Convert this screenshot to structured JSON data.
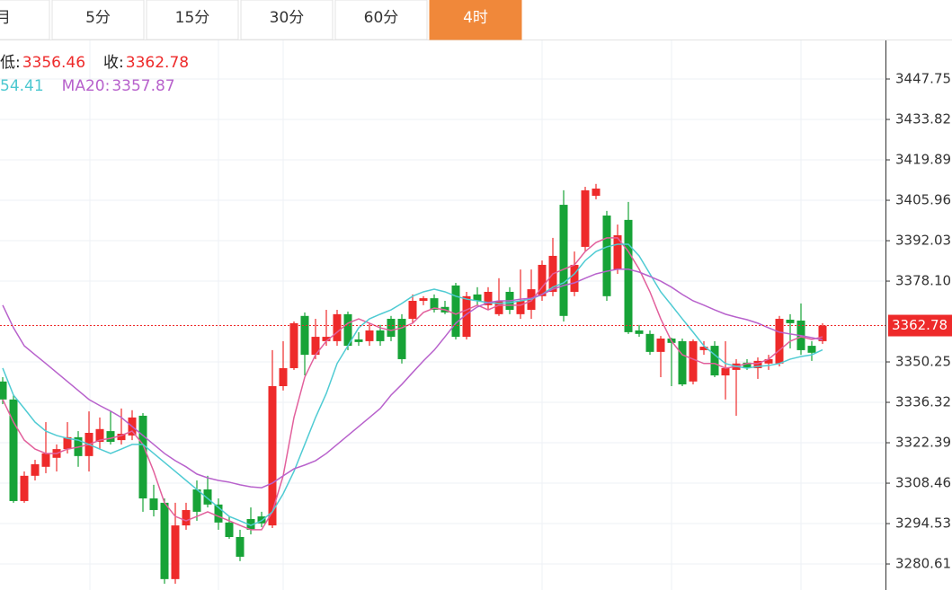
{
  "tabs": {
    "items": [
      "月",
      "5分",
      "15分",
      "30分",
      "60分",
      "4时"
    ],
    "active": 5
  },
  "chart_data": {
    "type": "candlestick",
    "legend_line1": [
      {
        "label": "低:",
        "value": 3356.46
      },
      {
        "label": "收:",
        "value": 3362.78
      }
    ],
    "legend_line2": [
      {
        "text": "54.41",
        "color": "#4cc8d0"
      },
      {
        "label": "MA20:",
        "value": 3357.87,
        "color": "#b862cc"
      }
    ],
    "up_color": "#ee2a2a",
    "down_color": "#17a337",
    "ylim": [
      3271.64,
      3461.06
    ],
    "yticks": [
      3447.75,
      3433.82,
      3419.89,
      3405.96,
      3392.03,
      {
        "value": 3378.1,
        "label": "3378.10"
      },
      3350.25,
      3336.32,
      3322.39,
      3308.46,
      3294.53,
      3280.61
    ],
    "grid": true,
    "last_price": 3362.78,
    "ohlc": [
      [
        3343.5,
        3345.0,
        3335.7,
        3337.3
      ],
      [
        3337.3,
        3338.8,
        3301.7,
        3302.3
      ],
      [
        3302.3,
        3312.5,
        3301.7,
        3311.0
      ],
      [
        3311.0,
        3316.5,
        3309.4,
        3315.0
      ],
      [
        3314.1,
        3329.5,
        3311.9,
        3318.7
      ],
      [
        3317.2,
        3321.8,
        3312.5,
        3320.2
      ],
      [
        3320.2,
        3329.5,
        3318.7,
        3324.3
      ],
      [
        3324.3,
        3326.4,
        3314.1,
        3317.8
      ],
      [
        3317.8,
        3333.2,
        3312.5,
        3325.8
      ],
      [
        3322.7,
        3331.1,
        3320.2,
        3327.1
      ],
      [
        3326.4,
        3333.2,
        3321.8,
        3322.7
      ],
      [
        3323.3,
        3334.2,
        3321.8,
        3325.5
      ],
      [
        3324.9,
        3333.6,
        3323.3,
        3331.1
      ],
      [
        3331.7,
        3332.6,
        3298.6,
        3303.2
      ],
      [
        3303.2,
        3307.9,
        3297.0,
        3299.2
      ],
      [
        3301.7,
        3303.2,
        3273.8,
        3275.4
      ],
      [
        3275.4,
        3301.7,
        3273.8,
        3293.9
      ],
      [
        3293.9,
        3301.7,
        3292.4,
        3299.2
      ],
      [
        3306.3,
        3309.4,
        3295.5,
        3298.6
      ],
      [
        3306.3,
        3311.0,
        3300.1,
        3301.1
      ],
      [
        3301.1,
        3303.2,
        3292.4,
        3294.9
      ],
      [
        3294.9,
        3297.0,
        3289.3,
        3289.9
      ],
      [
        3289.9,
        3292.4,
        3281.6,
        3283.1
      ],
      [
        3296.1,
        3300.1,
        3290.8,
        3292.4
      ],
      [
        3297.0,
        3298.6,
        3293.3,
        3294.6
      ],
      [
        3293.9,
        3354.3,
        3293.0,
        3341.9
      ],
      [
        3341.9,
        3357.4,
        3340.4,
        3348.1
      ],
      [
        3348.1,
        3364.2,
        3347.5,
        3363.6
      ],
      [
        3366.1,
        3367.3,
        3345.6,
        3352.7
      ],
      [
        3352.7,
        3365.1,
        3351.2,
        3358.9
      ],
      [
        3357.4,
        3368.2,
        3355.8,
        3358.9
      ],
      [
        3357.4,
        3368.2,
        3355.8,
        3366.7
      ],
      [
        3366.7,
        3367.6,
        3354.3,
        3355.8
      ],
      [
        3358.0,
        3360.5,
        3355.8,
        3357.1
      ],
      [
        3357.4,
        3363.6,
        3355.8,
        3361.1
      ],
      [
        3361.1,
        3363.0,
        3355.8,
        3357.4
      ],
      [
        3365.1,
        3366.1,
        3357.4,
        3358.9
      ],
      [
        3365.1,
        3366.7,
        3349.7,
        3351.2
      ],
      [
        3365.1,
        3373.5,
        3363.6,
        3371.3
      ],
      [
        3371.3,
        3372.9,
        3369.8,
        3372.2
      ],
      [
        3372.2,
        3373.5,
        3367.3,
        3368.2
      ],
      [
        3369.2,
        3371.3,
        3366.7,
        3367.3
      ],
      [
        3376.6,
        3377.5,
        3358.0,
        3358.9
      ],
      [
        3358.9,
        3374.4,
        3358.0,
        3372.9
      ],
      [
        3373.5,
        3376.0,
        3369.8,
        3371.3
      ],
      [
        3369.8,
        3376.0,
        3368.2,
        3374.4
      ],
      [
        3366.7,
        3379.1,
        3366.1,
        3371.3
      ],
      [
        3374.4,
        3376.0,
        3366.7,
        3368.2
      ],
      [
        3366.7,
        3382.1,
        3365.1,
        3371.3
      ],
      [
        3368.2,
        3382.1,
        3365.1,
        3375.3
      ],
      [
        3372.9,
        3385.2,
        3371.3,
        3383.7
      ],
      [
        3374.4,
        3393.0,
        3372.9,
        3386.8
      ],
      [
        3404.4,
        3409.4,
        3364.2,
        3366.1
      ],
      [
        3374.4,
        3388.3,
        3372.9,
        3383.7
      ],
      [
        3389.9,
        3410.6,
        3388.3,
        3409.4
      ],
      [
        3407.5,
        3411.6,
        3406.3,
        3410.0
      ],
      [
        3400.7,
        3402.3,
        3371.3,
        3372.9
      ],
      [
        3382.1,
        3397.6,
        3380.6,
        3393.9
      ],
      [
        3399.2,
        3405.4,
        3359.9,
        3360.5
      ],
      [
        3361.1,
        3363.0,
        3358.9,
        3359.9
      ],
      [
        3359.9,
        3361.1,
        3352.7,
        3353.7
      ],
      [
        3353.7,
        3359.2,
        3345.0,
        3358.3
      ],
      [
        3358.3,
        3358.6,
        3341.9,
        3356.8
      ],
      [
        3357.4,
        3358.3,
        3341.9,
        3342.5
      ],
      [
        3343.5,
        3358.0,
        3342.5,
        3357.4
      ],
      [
        3354.3,
        3357.4,
        3352.7,
        3355.5
      ],
      [
        3355.8,
        3357.4,
        3345.0,
        3345.6
      ],
      [
        3345.6,
        3357.4,
        3337.3,
        3348.1
      ],
      [
        3347.5,
        3351.2,
        3331.7,
        3349.7
      ],
      [
        3350.0,
        3351.2,
        3347.5,
        3348.1
      ],
      [
        3348.1,
        3351.8,
        3344.4,
        3350.6
      ],
      [
        3349.7,
        3352.7,
        3347.5,
        3351.2
      ],
      [
        3349.7,
        3366.1,
        3348.7,
        3365.1
      ],
      [
        3364.8,
        3366.7,
        3354.9,
        3363.6
      ],
      [
        3364.5,
        3370.4,
        3352.7,
        3354.3
      ],
      [
        3355.8,
        3357.4,
        3350.6,
        3353.4
      ],
      [
        3357.4,
        3363.6,
        3356.46,
        3362.78
      ]
    ],
    "ma_lines": [
      {
        "color": "#e2609c",
        "values": [
          3337.3,
          3329.5,
          3323.3,
          3320.2,
          3318.7,
          3318.7,
          3320.2,
          3320.9,
          3321.8,
          3323.3,
          3323.9,
          3324.9,
          3326.4,
          3321.8,
          3312.5,
          3301.7,
          3297.0,
          3295.5,
          3297.0,
          3298.6,
          3297.0,
          3295.5,
          3293.9,
          3292.4,
          3292.4,
          3298.6,
          3311.0,
          3331.1,
          3345.0,
          3352.7,
          3357.4,
          3360.5,
          3363.6,
          3365.1,
          3363.6,
          3362.0,
          3361.1,
          3362.0,
          3363.6,
          3367.3,
          3368.8,
          3368.2,
          3366.7,
          3368.2,
          3369.8,
          3368.2,
          3369.8,
          3369.8,
          3369.8,
          3371.3,
          3376.0,
          3380.6,
          3382.2,
          3383.7,
          3388.3,
          3391.4,
          3393.0,
          3393.0,
          3388.3,
          3382.2,
          3374.4,
          3365.1,
          3357.4,
          3352.7,
          3351.2,
          3349.7,
          3349.7,
          3348.1,
          3348.7,
          3349.7,
          3349.7,
          3351.2,
          3354.3,
          3357.4,
          3358.9,
          3358.0,
          3358.9
        ]
      },
      {
        "color": "#4fcbd3",
        "values": [
          3348.1,
          3338.8,
          3334.2,
          3329.5,
          3326.4,
          3324.9,
          3323.9,
          3323.3,
          3321.8,
          3320.2,
          3318.7,
          3320.2,
          3321.8,
          3321.8,
          3318.7,
          3315.6,
          3312.5,
          3309.4,
          3306.3,
          3303.2,
          3300.1,
          3297.0,
          3295.5,
          3293.9,
          3295.5,
          3298.6,
          3304.8,
          3312.5,
          3321.8,
          3331.1,
          3339.4,
          3349.7,
          3355.8,
          3362.0,
          3365.1,
          3366.7,
          3368.2,
          3370.4,
          3372.9,
          3374.4,
          3375.3,
          3374.4,
          3372.9,
          3371.9,
          3371.3,
          3370.7,
          3370.4,
          3370.7,
          3371.3,
          3371.9,
          3373.5,
          3376.0,
          3377.5,
          3380.6,
          3385.2,
          3388.3,
          3389.9,
          3390.8,
          3390.8,
          3386.8,
          3380.6,
          3374.4,
          3369.8,
          3365.1,
          3360.5,
          3355.8,
          3352.7,
          3349.7,
          3348.7,
          3348.1,
          3348.7,
          3349.0,
          3349.7,
          3351.2,
          3352.1,
          3352.7,
          3354.4
        ]
      },
      {
        "color": "#b862cc",
        "values": [
          3369.8,
          3362.0,
          3355.8,
          3352.7,
          3349.7,
          3346.6,
          3343.5,
          3340.4,
          3337.3,
          3335.2,
          3333.3,
          3331.1,
          3328.0,
          3324.9,
          3321.8,
          3318.7,
          3316.2,
          3314.1,
          3311.6,
          3310.3,
          3309.4,
          3308.8,
          3307.9,
          3307.2,
          3306.9,
          3308.5,
          3311.0,
          3313.4,
          3314.7,
          3316.2,
          3318.7,
          3321.8,
          3324.9,
          3328.0,
          3331.1,
          3334.2,
          3338.8,
          3342.5,
          3346.6,
          3350.6,
          3354.3,
          3358.9,
          3363.6,
          3366.7,
          3369.2,
          3370.7,
          3371.3,
          3371.3,
          3371.9,
          3372.2,
          3373.5,
          3375.3,
          3376.6,
          3377.5,
          3379.1,
          3380.6,
          3381.5,
          3382.2,
          3382.2,
          3381.2,
          3379.7,
          3378.1,
          3376.0,
          3373.5,
          3371.3,
          3369.8,
          3368.2,
          3366.7,
          3365.7,
          3364.8,
          3363.6,
          3362.0,
          3360.5,
          3359.9,
          3359.3,
          3358.6,
          3357.87
        ]
      }
    ]
  }
}
